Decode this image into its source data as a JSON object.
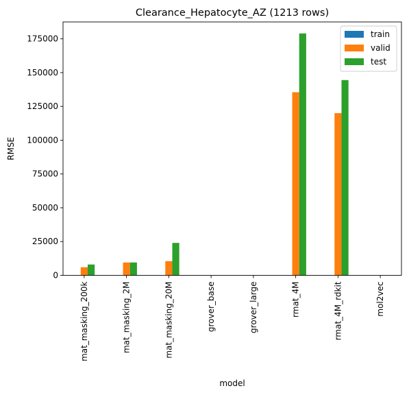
{
  "chart_data": {
    "type": "bar",
    "title": "Clearance_Hepatocyte_AZ (1213 rows)",
    "xlabel": "model",
    "ylabel": "RMSE",
    "ylim": [
      0,
      187500
    ],
    "yticks": [
      0,
      25000,
      50000,
      75000,
      100000,
      125000,
      150000,
      175000
    ],
    "categories": [
      "mat_masking_200k",
      "mat_masking_2M",
      "mat_masking_20M",
      "grover_base",
      "grover_large",
      "rmat_4M",
      "rmat_4M_rdkit",
      "mol2vec"
    ],
    "series": [
      {
        "name": "train",
        "color": "#1f77b4",
        "values": [
          0,
          0,
          0,
          0,
          0,
          0,
          0,
          0
        ]
      },
      {
        "name": "valid",
        "color": "#ff7f0e",
        "values": [
          6000,
          9500,
          10500,
          0,
          0,
          135500,
          120000,
          0
        ]
      },
      {
        "name": "test",
        "color": "#2ca02c",
        "values": [
          8000,
          9500,
          24000,
          0,
          0,
          179000,
          144500,
          0
        ]
      }
    ],
    "legend_position": "top-right",
    "grid": false
  }
}
